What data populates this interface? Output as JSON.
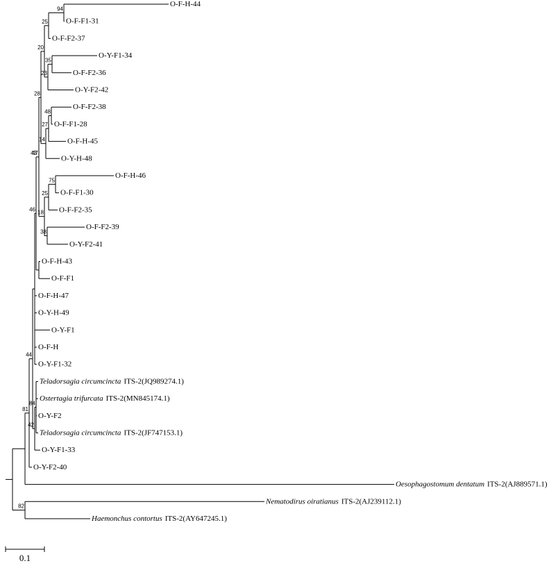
{
  "leaves": [
    {
      "label": "O-F-H-44"
    },
    {
      "label": "O-F-F1-31"
    },
    {
      "label": "O-F-F2-37"
    },
    {
      "label": "O-Y-F1-34"
    },
    {
      "label": "O-F-F2-36"
    },
    {
      "label": "O-Y-F2-42"
    },
    {
      "label": "O-F-F2-38"
    },
    {
      "label": "O-F-F1-28"
    },
    {
      "label": "O-F-H-45"
    },
    {
      "label": "O-Y-H-48"
    },
    {
      "label": "O-F-H-46"
    },
    {
      "label": "O-F-F1-30"
    },
    {
      "label": "O-F-F2-35"
    },
    {
      "label": "O-F-F2-39"
    },
    {
      "label": "O-Y-F2-41"
    },
    {
      "label": "O-F-H-43"
    },
    {
      "label": "O-F-F1"
    },
    {
      "label": "O-F-H-47"
    },
    {
      "label": "O-Y-H-49"
    },
    {
      "label": "O-Y-F1"
    },
    {
      "label": "O-F-H"
    },
    {
      "label": "O-Y-F1-32"
    },
    {
      "species": "Teladorsagia circumcincta",
      "label": "ITS-2(JQ989274.1)"
    },
    {
      "species": "Ostertagia trifurcata",
      "label": "ITS-2(MN845174.1)"
    },
    {
      "label": "O-Y-F2"
    },
    {
      "species": "Teladorsagia circumcincta",
      "label": "ITS-2(JF747153.1)"
    },
    {
      "label": "O-Y-F1-33"
    },
    {
      "label": "O-Y-F2-40"
    },
    {
      "species": "Oesophagostomum dentatum",
      "label": "ITS-2(AJ889571.1)"
    },
    {
      "species": "Nematodirus oiratianus",
      "label": "ITS-2(AJ239112.1)"
    },
    {
      "species": "Haemonchus contortus",
      "label": "ITS-2(AY647245.1)"
    }
  ],
  "supports": [
    94,
    25,
    20,
    35,
    23,
    28,
    48,
    27,
    14,
    47,
    75,
    25,
    18,
    43,
    38,
    46,
    44,
    84,
    42,
    81,
    82
  ],
  "scale_label": "0.1"
}
